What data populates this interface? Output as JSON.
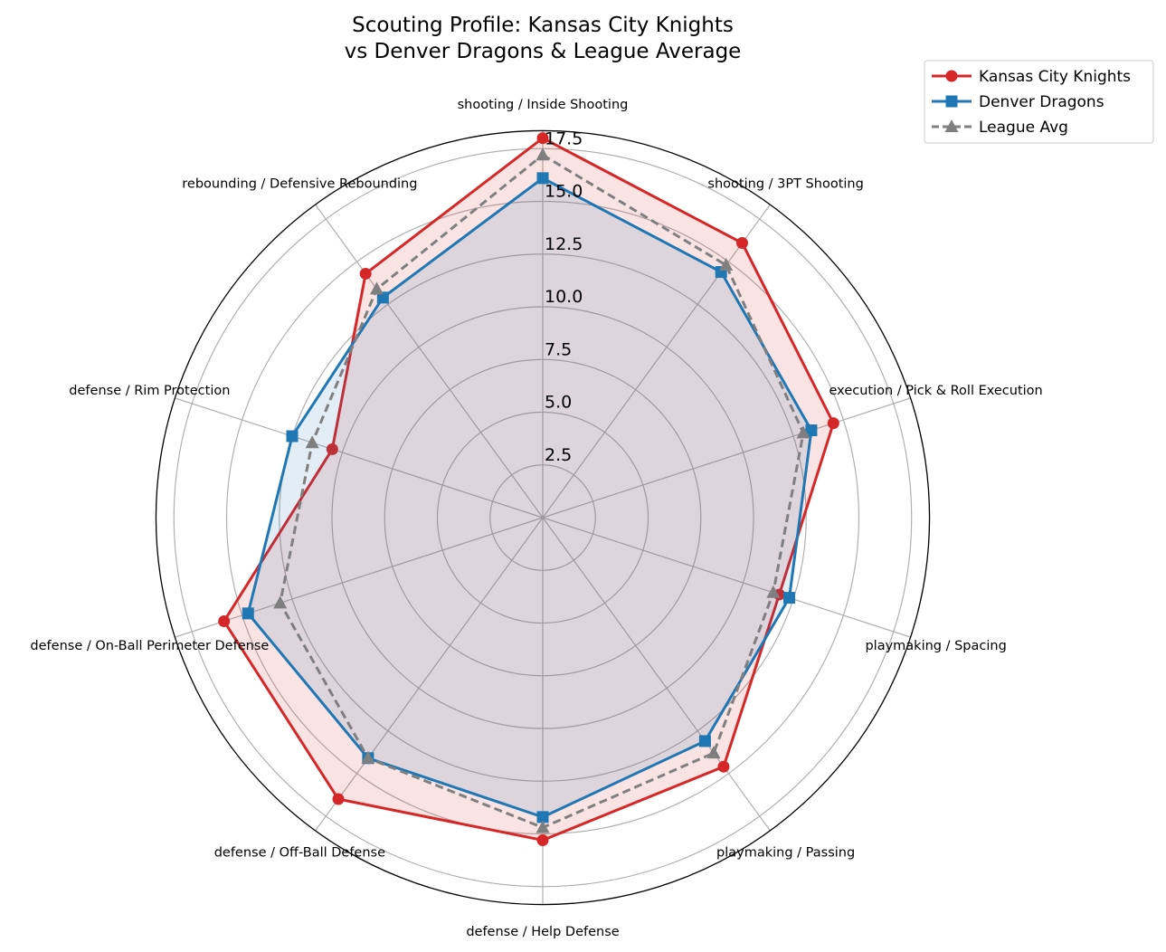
{
  "chart_data": {
    "type": "radar",
    "title": "Scouting Profile: Kansas City Knights\nvs Denver Dragons & League Average",
    "title_lines": [
      "Scouting Profile: Kansas City Knights",
      "vs Denver Dragons & League Average"
    ],
    "categories": [
      "shooting / Inside Shooting",
      "shooting / 3PT Shooting",
      "execution / Pick & Roll Execution",
      "playmaking / Spacing",
      "playmaking / Passing",
      "defense / Help Defense",
      "defense / Off-Ball Defense",
      "defense / On-Ball Perimeter Defense",
      "defense / Rim Protection",
      "rebounding / Defensive Rebounding"
    ],
    "radial_ticks": [
      "2.5",
      "5.0",
      "7.5",
      "10.0",
      "12.5",
      "15.0",
      "17.5"
    ],
    "rlim": [
      0,
      18.35
    ],
    "grid": true,
    "legend_position": "top-right",
    "series": [
      {
        "name": "Kansas City Knights",
        "color": "#d62728",
        "marker": "circle",
        "linestyle": "solid",
        "fill": true,
        "values": [
          18.0,
          16.1,
          14.5,
          11.8,
          14.6,
          15.3,
          16.5,
          15.9,
          10.5,
          14.3
        ]
      },
      {
        "name": "Denver Dragons",
        "color": "#1f77b4",
        "marker": "square",
        "linestyle": "solid",
        "fill": true,
        "values": [
          16.1,
          14.4,
          13.4,
          12.3,
          13.1,
          14.2,
          14.1,
          14.7,
          12.5,
          12.9
        ]
      },
      {
        "name": "League Avg",
        "color": "#7f7f7f",
        "marker": "triangle",
        "linestyle": "dashed",
        "fill": false,
        "values": [
          17.2,
          14.8,
          13.0,
          11.5,
          13.8,
          14.7,
          14.1,
          13.1,
          11.5,
          13.4
        ]
      }
    ]
  }
}
